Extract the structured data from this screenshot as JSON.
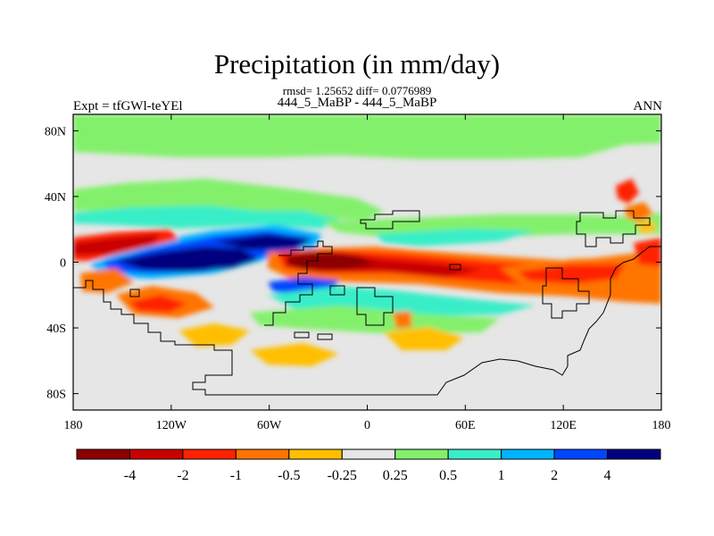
{
  "header": {
    "title": "Precipitation (in mm/day)",
    "stats": "rmsd= 1.25652 diff= 0.0776989",
    "case_label": "444_5_MaBP - 444_5_MaBP",
    "experiment_label": "Expt = tfGWl-teYEl",
    "season_label": "ANN"
  },
  "map": {
    "projection": "cylindrical equidistant",
    "lon_range": [
      -180,
      180
    ],
    "lat_range": [
      -90,
      90
    ],
    "x_ticks": [
      {
        "lon": -180,
        "label": "180"
      },
      {
        "lon": -120,
        "label": "120W"
      },
      {
        "lon": -60,
        "label": "60W"
      },
      {
        "lon": 0,
        "label": "0"
      },
      {
        "lon": 60,
        "label": "60E"
      },
      {
        "lon": 120,
        "label": "120E"
      },
      {
        "lon": 180,
        "label": "180"
      }
    ],
    "y_ticks": [
      {
        "lat": 80,
        "label": "80N"
      },
      {
        "lat": 40,
        "label": "40N"
      },
      {
        "lat": 0,
        "label": "0"
      },
      {
        "lat": -40,
        "label": "40S"
      },
      {
        "lat": -80,
        "label": "80S"
      }
    ],
    "background_color": "#e6e6e6"
  },
  "colorbar": {
    "colors": [
      "#8b0000",
      "#c80000",
      "#ff2200",
      "#ff7400",
      "#ffbf00",
      "#e6e6e6",
      "#83f06c",
      "#39eec8",
      "#00b4ff",
      "#0046ff",
      "#00007f"
    ],
    "levels": [
      "-4",
      "-2",
      "-1",
      "-0.5",
      "-0.25",
      "0.25",
      "0.5",
      "1",
      "2",
      "4"
    ]
  },
  "chart_data": {
    "type": "heatmap",
    "title": "Precipitation (in mm/day)",
    "subtitle": "444_5_MaBP - 444_5_MaBP",
    "variable_units": "mm/day",
    "contour_levels": [
      -4,
      -2,
      -1,
      -0.5,
      -0.25,
      0.25,
      0.5,
      1,
      2,
      4
    ],
    "x_range": [
      -180,
      180
    ],
    "y_range": [
      -90,
      90
    ],
    "rmsd": 1.25652,
    "diff": 0.0776989,
    "regions": [
      {
        "lon": [
          -178,
          -125
        ],
        "lat": [
          0,
          14
        ],
        "value": -2
      },
      {
        "lon": [
          -135,
          -90
        ],
        "lat": [
          -2,
          8
        ],
        "value": 4
      },
      {
        "lon": [
          -100,
          -55
        ],
        "lat": [
          4,
          14
        ],
        "value": 4
      },
      {
        "lon": [
          -52,
          -10
        ],
        "lat": [
          -6,
          4
        ],
        "value": -4
      },
      {
        "lon": [
          -10,
          120
        ],
        "lat": [
          -12,
          0
        ],
        "value": -1
      },
      {
        "lon": [
          150,
          180
        ],
        "lat": [
          -10,
          8
        ],
        "value": -0.5
      },
      {
        "lon": [
          -175,
          -100
        ],
        "lat": [
          22,
          34
        ],
        "value": 0.5
      },
      {
        "lon": [
          -180,
          180
        ],
        "lat": [
          62,
          82
        ],
        "value": 0.25
      },
      {
        "lon": [
          -150,
          -80
        ],
        "lat": [
          -34,
          -18
        ],
        "value": -0.5
      },
      {
        "lon": [
          -60,
          40
        ],
        "lat": [
          -48,
          -32
        ],
        "value": 0.5
      },
      {
        "lon": [
          -120,
          -60
        ],
        "lat": [
          -62,
          -48
        ],
        "value": -0.25
      },
      {
        "lon": [
          152,
          168
        ],
        "lat": [
          24,
          44
        ],
        "value": -1
      }
    ]
  }
}
